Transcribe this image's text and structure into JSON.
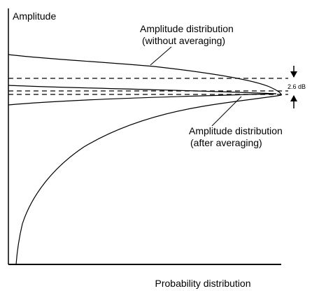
{
  "y_axis_label": "Amplitude",
  "x_axis_label": "Probability distribution",
  "annotations": {
    "without_averaging": [
      "Amplitude distribution",
      "(without averaging)"
    ],
    "after_averaging": [
      "Amplitude distribution",
      "(after averaging)"
    ],
    "difference": "2.6 dB"
  }
}
